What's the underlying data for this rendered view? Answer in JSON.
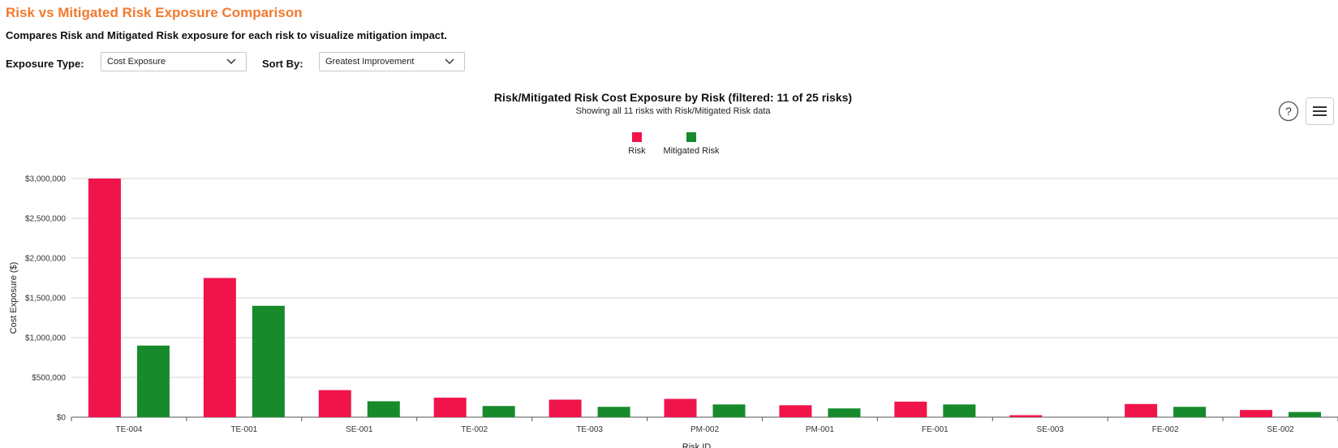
{
  "header": {
    "title": "Risk vs Mitigated Risk Exposure Comparison",
    "description": "Compares Risk and Mitigated Risk exposure for each risk to visualize mitigation impact."
  },
  "filters": {
    "exposure_type": {
      "label": "Exposure Type:",
      "value": "Cost Exposure"
    },
    "sort_by": {
      "label": "Sort By:",
      "value": "Greatest Improvement"
    }
  },
  "toolbar": {
    "help_icon": "help-circle-icon",
    "menu_icon": "hamburger-menu-icon"
  },
  "colors": {
    "title": "#f27a30",
    "risk": "#f0144b",
    "mitigated": "#178a2b"
  },
  "chart_data": {
    "type": "bar",
    "title": "Risk/Mitigated Risk Cost Exposure by Risk (filtered: 11 of 25 risks)",
    "subtitle": "Showing all 11 risks with Risk/Mitigated Risk data",
    "xlabel": "Risk ID",
    "ylabel": "Cost Exposure ($)",
    "ylim": [
      0,
      3000000
    ],
    "yticks": [
      0,
      500000,
      1000000,
      1500000,
      2000000,
      2500000,
      3000000
    ],
    "ytick_labels": [
      "$0",
      "$500,000",
      "$1,000,000",
      "$1,500,000",
      "$2,000,000",
      "$2,500,000",
      "$3,000,000"
    ],
    "grid": true,
    "legend_position": "top-center",
    "categories": [
      "TE-004",
      "TE-001",
      "SE-001",
      "TE-002",
      "TE-003",
      "PM-002",
      "PM-001",
      "FE-001",
      "SE-003",
      "FE-002",
      "SE-002"
    ],
    "series": [
      {
        "name": "Risk",
        "color": "#f0144b",
        "values": [
          3000000,
          1750000,
          340000,
          245000,
          220000,
          230000,
          150000,
          195000,
          25000,
          165000,
          90000
        ]
      },
      {
        "name": "Mitigated Risk",
        "color": "#178a2b",
        "values": [
          900000,
          1400000,
          200000,
          140000,
          130000,
          160000,
          110000,
          160000,
          0,
          130000,
          65000
        ]
      }
    ]
  }
}
